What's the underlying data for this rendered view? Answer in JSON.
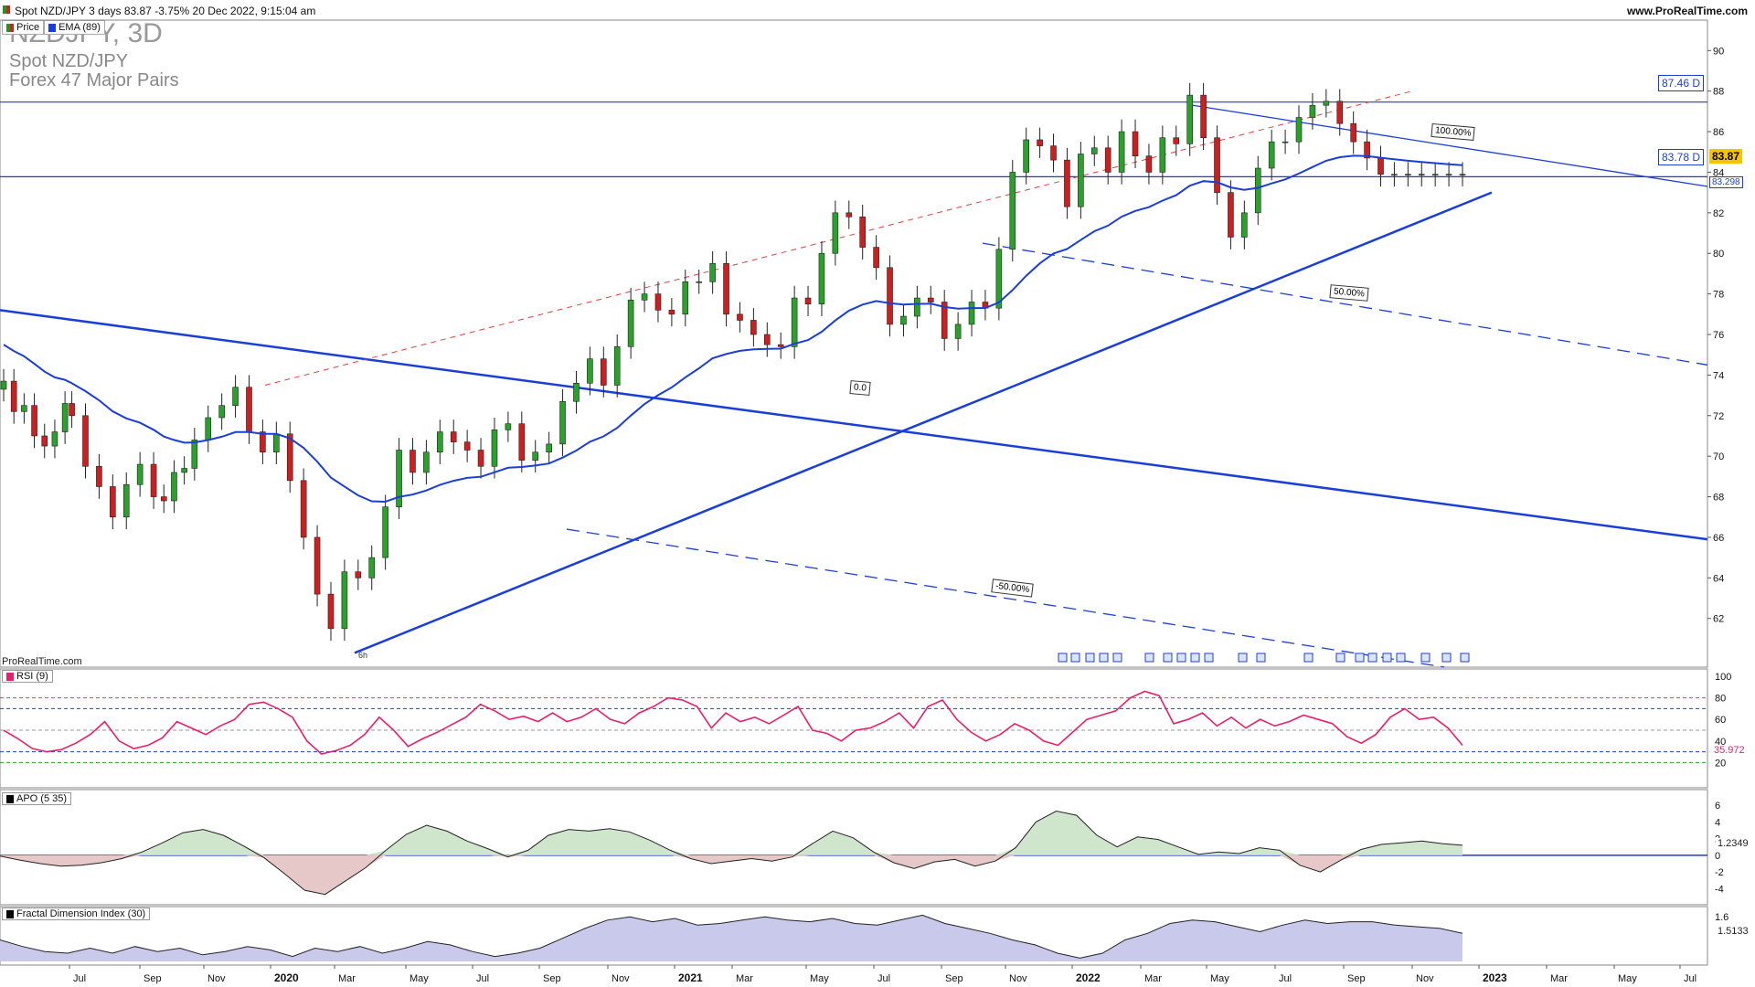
{
  "header": {
    "instrument_line": "Spot NZD/JPY 3 days 83.87 -3.75% 20 Dec 2022, 9:15:04 am",
    "site": "www.ProRealTime.com"
  },
  "legend": {
    "price_label": "Price",
    "ema_label": "EMA (89)",
    "price_color": "#d02020",
    "ema_color": "#1a3fd8"
  },
  "title": {
    "symbol": "NZDJPY, 3D",
    "name": "Spot NZD/JPY",
    "group": "Forex 47 Major Pairs"
  },
  "watermark": "ProRealTime.com",
  "price_tags": {
    "resistance": "87.46 D",
    "support": "83.78 D",
    "last": "83.87",
    "ema": "83.298"
  },
  "fib_labels": {
    "f100": "100.00%",
    "f50": "50.00%",
    "f0": "0.0",
    "fneg50": "-50.00%",
    "anchor": "6h"
  },
  "panels": {
    "rsi": {
      "label": "RSI (9)",
      "value": "35.972",
      "color": "#e8206a"
    },
    "apo": {
      "label": "APO (5 35)",
      "value": "1.2349"
    },
    "fdi": {
      "label": "Fractal Dimension Index (30)",
      "value": "1.5133"
    }
  },
  "chart_data": {
    "type": "line",
    "title": "NZDJPY, 3D",
    "x_ticks": [
      "Jul",
      "Sep",
      "Nov",
      "2020",
      "Mar",
      "May",
      "Jul",
      "Sep",
      "Nov",
      "2021",
      "Mar",
      "May",
      "Jul",
      "Sep",
      "Nov",
      "2022",
      "Mar",
      "May",
      "Jul",
      "Sep",
      "Nov",
      "2023",
      "Mar",
      "May",
      "Jul"
    ],
    "y_ticks": [
      62,
      64,
      66,
      68,
      70,
      72,
      74,
      76,
      78,
      80,
      82,
      84,
      86,
      88,
      90
    ],
    "ylim": [
      59.6,
      91.5
    ],
    "rsi_ticks": [
      "100",
      "80",
      "60",
      "40",
      "20"
    ],
    "apo_ticks": [
      "6",
      "4",
      "2",
      "0",
      "-2",
      "-4"
    ],
    "fdi_ticks": [
      "1.6"
    ],
    "series": [
      {
        "values_x": [
          0,
          3,
          6,
          9,
          12,
          15,
          18,
          20,
          24,
          28,
          32,
          36,
          40,
          44,
          47,
          50,
          53,
          56,
          60,
          64,
          68,
          72,
          76,
          80,
          84,
          88,
          92,
          96,
          100,
          104,
          108,
          112,
          116,
          120,
          124,
          128,
          132,
          136,
          140,
          144,
          148,
          152,
          156,
          160,
          164,
          168,
          172,
          176,
          180,
          184,
          188,
          192,
          196,
          200,
          204,
          208,
          212,
          216,
          220,
          224,
          228,
          232,
          236,
          240,
          244,
          248,
          252,
          256,
          260,
          264,
          268,
          272,
          276,
          280,
          284,
          288,
          292,
          296,
          300,
          304,
          308,
          312,
          316,
          320,
          324,
          328,
          332,
          336,
          340,
          344,
          348,
          352,
          356,
          360,
          364,
          368,
          372,
          376,
          380,
          384,
          388,
          392,
          396,
          400,
          404,
          408,
          412,
          416,
          420,
          424,
          428
        ],
        "values": [
          73.7,
          72.2,
          72.5,
          71.0,
          70.5,
          71.2,
          72.6,
          72.0,
          69.5,
          68.5,
          67.0,
          68.6,
          69.6,
          68.0,
          67.8,
          69.2,
          69.4,
          70.8,
          71.9,
          72.5,
          73.4,
          71.2,
          70.2,
          71.1,
          68.8,
          66.0,
          63.2,
          61.5,
          64.3,
          64.0,
          65.0,
          67.5,
          70.3,
          69.2,
          70.2,
          71.2,
          70.7,
          70.3,
          69.5,
          71.3,
          71.6,
          69.8,
          70.2,
          70.6,
          72.7,
          73.6,
          74.8,
          73.5,
          75.4,
          77.7,
          78.0,
          77.2,
          77.0,
          78.6,
          78.6,
          79.5,
          77.0,
          76.7,
          76.0,
          75.5,
          75.4,
          77.8,
          77.5,
          80.0,
          82.0,
          81.8,
          80.3,
          79.3,
          76.5,
          76.9,
          77.8,
          77.6,
          75.8,
          76.5,
          77.6,
          77.3,
          80.2,
          84.0,
          85.6,
          85.3,
          84.6,
          82.3,
          84.9,
          85.2,
          84.0,
          86.0,
          84.8,
          84.0,
          85.7,
          85.4,
          87.8,
          85.7,
          83.0,
          80.8,
          82.0,
          84.2,
          85.5,
          85.5,
          86.7,
          87.3,
          87.5,
          86.4,
          85.5,
          84.7,
          83.9,
          83.9,
          83.9,
          83.9,
          83.9,
          83.9,
          83.9
        ]
      }
    ],
    "rsi_values": [
      50,
      42,
      33,
      30,
      32,
      38,
      46,
      58,
      40,
      33,
      36,
      43,
      58,
      52,
      46,
      54,
      60,
      74,
      76,
      70,
      62,
      40,
      28,
      31,
      36,
      46,
      62,
      50,
      35,
      42,
      48,
      55,
      62,
      74,
      68,
      60,
      63,
      58,
      66,
      58,
      62,
      70,
      60,
      56,
      66,
      72,
      80,
      78,
      72,
      52,
      66,
      58,
      62,
      56,
      64,
      72,
      50,
      47,
      40,
      50,
      52,
      58,
      66,
      52,
      72,
      78,
      60,
      48,
      40,
      46,
      56,
      50,
      40,
      36,
      48,
      60,
      64,
      68,
      80,
      86,
      82,
      56,
      60,
      66,
      54,
      62,
      52,
      60,
      54,
      58,
      64,
      60,
      56,
      44,
      38,
      46,
      62,
      70,
      60,
      62,
      52,
      36
    ],
    "apo_values": [
      -0.1,
      -0.6,
      -1.0,
      -1.3,
      -1.2,
      -0.9,
      -0.4,
      0.4,
      1.5,
      2.7,
      3.1,
      2.4,
      1.1,
      -0.3,
      -2.2,
      -4.2,
      -4.7,
      -3.1,
      -1.5,
      0.6,
      2.5,
      3.6,
      2.9,
      1.7,
      0.8,
      -0.2,
      0.6,
      2.4,
      3.1,
      2.9,
      3.2,
      2.8,
      1.8,
      0.6,
      -0.4,
      -1.0,
      -0.7,
      -0.4,
      -0.7,
      -0.2,
      1.4,
      2.9,
      2.1,
      0.4,
      -0.9,
      -1.6,
      -0.8,
      -0.5,
      -1.3,
      -0.7,
      0.9,
      4.0,
      5.3,
      4.8,
      2.4,
      1.0,
      2.2,
      1.9,
      1.0,
      0.1,
      0.4,
      0.2,
      0.9,
      0.6,
      -1.2,
      -2.0,
      -0.6,
      0.7,
      1.3,
      1.5,
      1.7,
      1.4,
      1.2
    ],
    "fdi_values": [
      1.46,
      1.42,
      1.39,
      1.38,
      1.41,
      1.38,
      1.42,
      1.39,
      1.41,
      1.37,
      1.39,
      1.42,
      1.4,
      1.36,
      1.41,
      1.39,
      1.42,
      1.38,
      1.41,
      1.45,
      1.43,
      1.39,
      1.36,
      1.38,
      1.41,
      1.47,
      1.53,
      1.58,
      1.6,
      1.57,
      1.59,
      1.55,
      1.56,
      1.58,
      1.6,
      1.58,
      1.57,
      1.59,
      1.56,
      1.55,
      1.58,
      1.61,
      1.56,
      1.53,
      1.5,
      1.46,
      1.43,
      1.38,
      1.35,
      1.38,
      1.46,
      1.5,
      1.56,
      1.58,
      1.57,
      1.54,
      1.51,
      1.55,
      1.58,
      1.56,
      1.57,
      1.57,
      1.55,
      1.54,
      1.53,
      1.5
    ],
    "levels": {
      "resistance": 87.46,
      "support": 83.78,
      "ema_last": 83.298
    }
  }
}
